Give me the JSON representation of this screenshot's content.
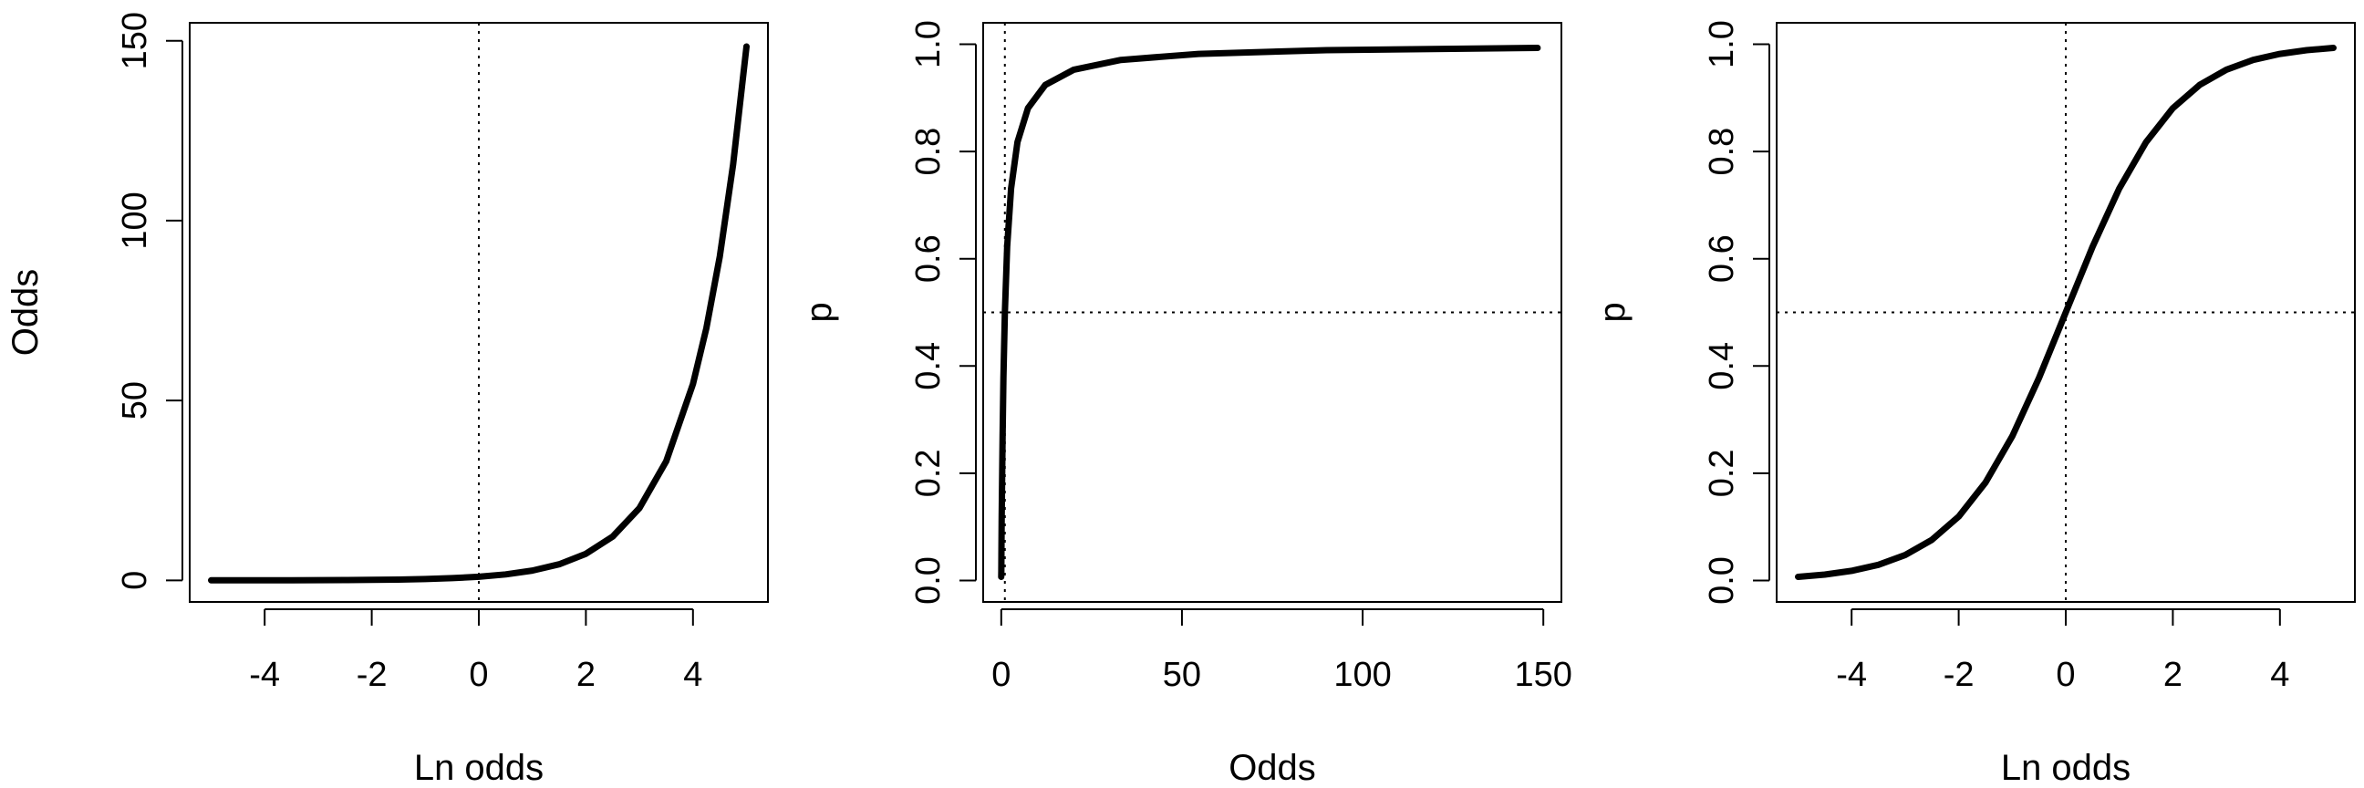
{
  "chart_data": [
    {
      "type": "line",
      "title": "",
      "xlabel": "Ln odds",
      "ylabel": "Odds",
      "xlim": [
        -5.4,
        5.4
      ],
      "ylim": [
        -6,
        155
      ],
      "x_ticks": [
        "-4",
        "-2",
        "0",
        "2",
        "4"
      ],
      "y_ticks": [
        "0",
        "50",
        "100",
        "150"
      ],
      "grid": false,
      "reference_lines": [
        {
          "orientation": "vertical",
          "value": 0,
          "style": "dotted"
        }
      ],
      "series": [
        {
          "x": [
            -5,
            -4.5,
            -4,
            -3.5,
            -3,
            -2.5,
            -2,
            -1.5,
            -1,
            -0.5,
            0,
            0.5,
            1,
            1.5,
            2,
            2.5,
            3,
            3.5,
            4,
            4.25,
            4.5,
            4.75,
            5
          ],
          "y": [
            0.0067,
            0.0111,
            0.0183,
            0.0302,
            0.0498,
            0.0821,
            0.1353,
            0.2231,
            0.3679,
            0.6065,
            1,
            1.6487,
            2.7183,
            4.4817,
            7.3891,
            12.1825,
            20.0855,
            33.1155,
            54.5982,
            70.1054,
            90.0171,
            115.5843,
            148.4132
          ]
        }
      ]
    },
    {
      "type": "line",
      "title": "",
      "xlabel": "Odds",
      "ylabel": "p",
      "xlim": [
        -5,
        155
      ],
      "ylim": [
        -0.04,
        1.04
      ],
      "x_ticks": [
        "0",
        "50",
        "100",
        "150"
      ],
      "y_ticks": [
        "0.0",
        "0.2",
        "0.4",
        "0.6",
        "0.8",
        "1.0"
      ],
      "grid": false,
      "reference_lines": [
        {
          "orientation": "vertical",
          "value": 1,
          "style": "dotted"
        },
        {
          "orientation": "horizontal",
          "value": 0.5,
          "style": "dotted"
        }
      ],
      "series": [
        {
          "x": [
            0.0067,
            0.0183,
            0.0498,
            0.1353,
            0.3679,
            0.6065,
            1,
            1.6487,
            2.7183,
            4.4817,
            7.3891,
            12.1825,
            20.0855,
            33.1155,
            54.5982,
            90.0171,
            148.4132
          ],
          "y": [
            0.0067,
            0.018,
            0.0474,
            0.1192,
            0.2689,
            0.3775,
            0.5,
            0.6225,
            0.7311,
            0.8176,
            0.8808,
            0.9241,
            0.9526,
            0.9707,
            0.982,
            0.989,
            0.9933
          ]
        }
      ]
    },
    {
      "type": "line",
      "title": "",
      "xlabel": "Ln odds",
      "ylabel": "p",
      "xlim": [
        -5.4,
        5.4
      ],
      "ylim": [
        -0.04,
        1.04
      ],
      "x_ticks": [
        "-4",
        "-2",
        "0",
        "2",
        "4"
      ],
      "y_ticks": [
        "0.0",
        "0.2",
        "0.4",
        "0.6",
        "0.8",
        "1.0"
      ],
      "grid": false,
      "reference_lines": [
        {
          "orientation": "vertical",
          "value": 0,
          "style": "dotted"
        },
        {
          "orientation": "horizontal",
          "value": 0.5,
          "style": "dotted"
        }
      ],
      "series": [
        {
          "x": [
            -5,
            -4.5,
            -4,
            -3.5,
            -3,
            -2.5,
            -2,
            -1.5,
            -1,
            -0.5,
            0,
            0.5,
            1,
            1.5,
            2,
            2.5,
            3,
            3.5,
            4,
            4.5,
            5
          ],
          "y": [
            0.0067,
            0.011,
            0.018,
            0.0293,
            0.0474,
            0.0759,
            0.1192,
            0.1824,
            0.2689,
            0.3775,
            0.5,
            0.6225,
            0.7311,
            0.8176,
            0.8808,
            0.9241,
            0.9526,
            0.9707,
            0.982,
            0.989,
            0.9933
          ]
        }
      ]
    }
  ]
}
